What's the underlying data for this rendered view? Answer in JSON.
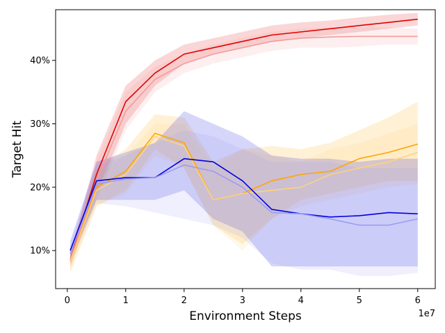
{
  "chart_data": {
    "type": "line",
    "title": "",
    "xlabel": "Environment Steps",
    "ylabel": "Target Hit",
    "x_offset_label": "1e7",
    "xlim": [
      -0.2,
      6.3
    ],
    "ylim": [
      4,
      48
    ],
    "x_ticks": [
      0,
      1,
      2,
      3,
      4,
      5,
      6
    ],
    "x_tick_labels": [
      "0",
      "1",
      "2",
      "3",
      "4",
      "5",
      "6"
    ],
    "y_ticks": [
      10,
      20,
      30,
      40
    ],
    "y_tick_labels": [
      "10%",
      "20%",
      "30%",
      "40%"
    ],
    "grid": false,
    "legend": "none",
    "x": [
      0.05,
      0.5,
      1.0,
      1.5,
      2.0,
      2.5,
      3.0,
      3.5,
      4.0,
      4.5,
      5.0,
      5.5,
      6.0
    ],
    "series": [
      {
        "name": "red",
        "color": "#e00000",
        "values": [
          8.5,
          22,
          33.5,
          38,
          41,
          42,
          43,
          44,
          44.5,
          45,
          45.5,
          46,
          46.5
        ],
        "band_lower": [
          7.5,
          19,
          30,
          36,
          39.5,
          41,
          42,
          43,
          43.5,
          44,
          44.5,
          45,
          45.5
        ],
        "band_upper": [
          9.5,
          25,
          36,
          40,
          42.5,
          43.5,
          44.5,
          45.5,
          46,
          46.3,
          46.8,
          47.2,
          47.5
        ]
      },
      {
        "name": "red-light",
        "color": "#f59a9a",
        "values": [
          8.5,
          21,
          32,
          37,
          39.5,
          41,
          42,
          43,
          43.5,
          43.7,
          43.8,
          43.8,
          43.8
        ],
        "band_lower": [
          7.5,
          18,
          29,
          35,
          38,
          39.5,
          40.5,
          41.5,
          42,
          42,
          42.2,
          42.5,
          42.5
        ],
        "band_upper": [
          9.5,
          24,
          35,
          39,
          41,
          42.5,
          43.5,
          44.5,
          45,
          45.2,
          45.3,
          45.2,
          45
        ]
      },
      {
        "name": "orange",
        "color": "#ffa500",
        "values": [
          8.2,
          20,
          22.5,
          28.5,
          27,
          18,
          19,
          21,
          22,
          22.5,
          24.5,
          25.5,
          26.8
        ],
        "band_lower": [
          6.5,
          17,
          19.5,
          26,
          23,
          14,
          11,
          15,
          18,
          19,
          20,
          21,
          21
        ],
        "band_upper": [
          10,
          23,
          26,
          31.5,
          31,
          24,
          26,
          26.5,
          26,
          27,
          29,
          31,
          33.5
        ]
      },
      {
        "name": "orange-light",
        "color": "#ffd27f",
        "values": [
          8.2,
          19.5,
          22,
          28,
          26.5,
          18,
          19,
          19.5,
          20,
          22,
          23,
          24,
          25.5
        ],
        "band_lower": [
          7,
          17,
          19,
          25,
          23,
          14,
          10,
          15,
          17,
          18,
          19,
          20,
          20.5
        ],
        "band_upper": [
          9.5,
          22,
          25,
          30,
          30,
          23,
          26,
          25,
          24,
          26,
          27,
          28.5,
          30
        ]
      },
      {
        "name": "blue",
        "color": "#0000e0",
        "values": [
          10,
          21,
          21.5,
          21.5,
          24.5,
          24,
          21,
          16.5,
          15.8,
          15.3,
          15.5,
          16,
          15.8
        ],
        "band_lower": [
          8.5,
          18,
          18,
          18,
          19.5,
          15,
          13,
          7.5,
          7.5,
          7.5,
          7.5,
          7.5,
          7.5
        ],
        "band_upper": [
          11.5,
          24,
          25.5,
          27,
          32,
          30,
          28,
          25,
          24.5,
          24.5,
          24,
          24.5,
          24.5
        ]
      },
      {
        "name": "blue-light",
        "color": "#9b9bf5",
        "values": [
          9.5,
          20.5,
          21.3,
          21.5,
          23.5,
          22.5,
          20,
          16,
          15.8,
          15,
          14,
          14,
          15
        ],
        "band_lower": [
          8,
          17.5,
          17,
          16,
          15,
          14,
          12,
          8,
          7,
          7,
          6,
          6,
          6.5
        ],
        "band_upper": [
          11,
          23.5,
          25,
          27,
          29,
          28,
          26,
          24,
          24,
          24,
          23,
          23,
          23
        ]
      }
    ]
  }
}
